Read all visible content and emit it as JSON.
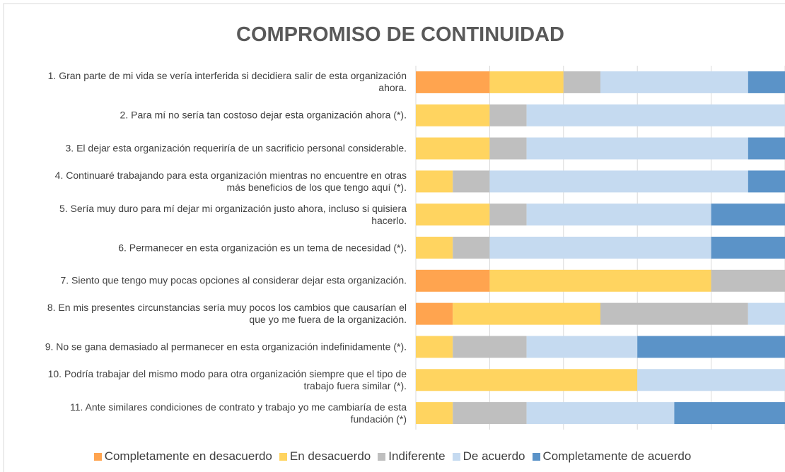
{
  "chart_data": {
    "type": "stacked_bar_horizontal",
    "title": "COMPROMISO DE CONTINUIDAD",
    "categories": [
      "1. Gran parte de mi vida se vería interferida si decidiera salir de esta organización ahora.",
      "2. Para mí no sería tan costoso dejar esta organización ahora (*).",
      "3. El dejar esta organización requeriría de un sacrificio personal considerable.",
      "4. Continuaré trabajando para esta organización mientras no encuentre en otras más beneficios de los que tengo aquí (*).",
      "5. Sería muy duro para mí dejar mi organización justo ahora, incluso si quisiera hacerlo.",
      "6. Permanecer en esta organización es un tema de necesidad (*).",
      "7. Siento que tengo muy pocas opciones al considerar dejar esta organización.",
      "8. En mis presentes circunstancias sería muy pocos los cambios que causarían el que yo me fuera de la organización.",
      "9. No se gana demasiado al permanecer en esta organización indefinidamente (*).",
      "10. Podría trabajar del mismo modo para otra organización siempre que el tipo de trabajo fuera similar (*).",
      "11. Ante similares condiciones de contrato y trabajo yo me cambiaría de esta fundación (*)"
    ],
    "series": [
      {
        "name": "Completamente en desacuerdo",
        "color": "#ffa44f",
        "values": [
          20,
          0,
          0,
          0,
          0,
          0,
          20,
          10,
          0,
          0,
          0
        ]
      },
      {
        "name": "En desacuerdo",
        "color": "#ffd460",
        "values": [
          20,
          20,
          20,
          10,
          20,
          10,
          60,
          40,
          10,
          60,
          10
        ]
      },
      {
        "name": "Indiferente",
        "color": "#bfbfbf",
        "values": [
          10,
          10,
          10,
          10,
          10,
          10,
          20,
          40,
          20,
          0,
          20
        ]
      },
      {
        "name": "De acuerdo",
        "color": "#c5daf0",
        "values": [
          40,
          70,
          60,
          70,
          50,
          60,
          0,
          10,
          30,
          40,
          40
        ]
      },
      {
        "name": "Completamente de acuerdo",
        "color": "#5b93c8",
        "values": [
          10,
          0,
          10,
          10,
          20,
          20,
          0,
          0,
          40,
          0,
          30
        ]
      }
    ],
    "xlim": [
      0,
      100
    ],
    "xticks": [
      0,
      20,
      40,
      60,
      80,
      100
    ],
    "grid": true
  }
}
